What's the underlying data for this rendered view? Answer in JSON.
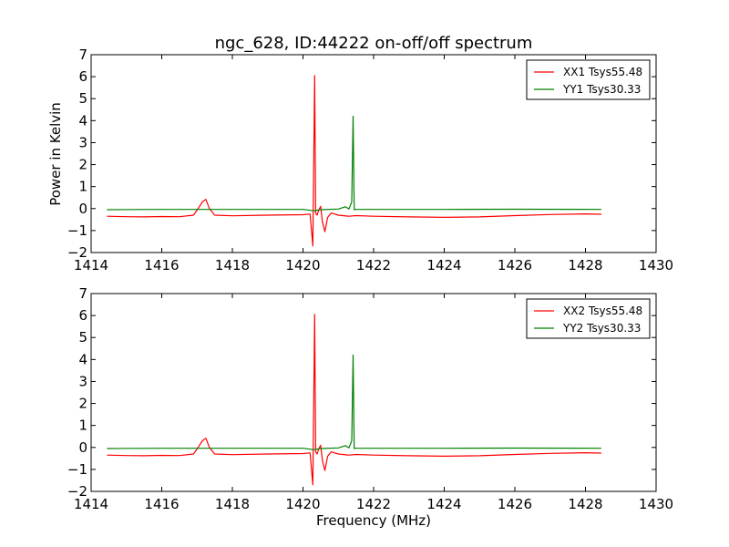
{
  "figure": {
    "title": "ngc_628, ID:44222 on-off/off spectrum",
    "ylabel": "Power in Kelvin",
    "xlabel": "Frequency (MHz)"
  },
  "colors": {
    "red": "#ff0000",
    "green": "#008000"
  },
  "chart_data": [
    {
      "type": "line",
      "title": "ngc_628, ID:44222 on-off/off spectrum",
      "xlabel": "",
      "ylabel": "Power in Kelvin",
      "xlim": [
        1414,
        1430
      ],
      "ylim": [
        -2,
        7
      ],
      "xticks": [
        "1414",
        "1416",
        "1418",
        "1420",
        "1422",
        "1424",
        "1426",
        "1428",
        "1430"
      ],
      "yticks": [
        "−2",
        "−1",
        "0",
        "1",
        "2",
        "3",
        "4",
        "5",
        "6",
        "7"
      ],
      "legend_position": "top-right",
      "grid": false,
      "series": [
        {
          "name": "XX1 Tsys55.48",
          "color": "#ff0000",
          "x": [
            1414.45,
            1415.0,
            1415.5,
            1416.0,
            1416.5,
            1416.9,
            1417.05,
            1417.15,
            1417.25,
            1417.35,
            1417.5,
            1418.0,
            1419.0,
            1420.0,
            1420.2,
            1420.28,
            1420.33,
            1420.36,
            1420.4,
            1420.45,
            1420.5,
            1420.55,
            1420.62,
            1420.7,
            1420.8,
            1421.0,
            1421.3,
            1421.5,
            1422.0,
            1423.0,
            1424.0,
            1425.0,
            1426.0,
            1427.0,
            1428.0,
            1428.45
          ],
          "y": [
            -0.35,
            -0.37,
            -0.38,
            -0.36,
            -0.37,
            -0.3,
            0.05,
            0.3,
            0.42,
            0.0,
            -0.3,
            -0.33,
            -0.3,
            -0.28,
            -0.25,
            -1.7,
            6.05,
            -0.2,
            -0.3,
            -0.05,
            0.1,
            -0.6,
            -1.05,
            -0.4,
            -0.2,
            -0.3,
            -0.35,
            -0.32,
            -0.35,
            -0.38,
            -0.4,
            -0.38,
            -0.32,
            -0.27,
            -0.24,
            -0.26
          ]
        },
        {
          "name": "YY1 Tsys30.33",
          "color": "#008000",
          "x": [
            1414.45,
            1416.0,
            1418.0,
            1420.0,
            1420.3,
            1420.5,
            1421.0,
            1421.2,
            1421.3,
            1421.38,
            1421.42,
            1421.45,
            1421.5,
            1422.0,
            1424.0,
            1426.0,
            1428.45
          ],
          "y": [
            -0.05,
            -0.04,
            -0.04,
            -0.04,
            -0.1,
            -0.05,
            -0.02,
            0.08,
            -0.02,
            0.3,
            4.2,
            -0.05,
            -0.04,
            -0.04,
            -0.04,
            -0.03,
            -0.04
          ]
        }
      ]
    },
    {
      "type": "line",
      "title": "",
      "xlabel": "Frequency (MHz)",
      "ylabel": "",
      "xlim": [
        1414,
        1430
      ],
      "ylim": [
        -2,
        7
      ],
      "xticks": [
        "1414",
        "1416",
        "1418",
        "1420",
        "1422",
        "1424",
        "1426",
        "1428",
        "1430"
      ],
      "yticks": [
        "−2",
        "−1",
        "0",
        "1",
        "2",
        "3",
        "4",
        "5",
        "6",
        "7"
      ],
      "legend_position": "top-right",
      "grid": false,
      "series": [
        {
          "name": "XX2 Tsys55.48",
          "color": "#ff0000",
          "x": [
            1414.45,
            1415.0,
            1415.5,
            1416.0,
            1416.5,
            1416.9,
            1417.05,
            1417.15,
            1417.25,
            1417.35,
            1417.5,
            1418.0,
            1419.0,
            1420.0,
            1420.2,
            1420.28,
            1420.33,
            1420.36,
            1420.4,
            1420.45,
            1420.5,
            1420.55,
            1420.62,
            1420.7,
            1420.8,
            1421.0,
            1421.3,
            1421.5,
            1422.0,
            1423.0,
            1424.0,
            1425.0,
            1426.0,
            1427.0,
            1428.0,
            1428.45
          ],
          "y": [
            -0.35,
            -0.37,
            -0.38,
            -0.36,
            -0.37,
            -0.3,
            0.05,
            0.3,
            0.42,
            0.0,
            -0.3,
            -0.33,
            -0.3,
            -0.28,
            -0.25,
            -1.7,
            6.05,
            -0.2,
            -0.3,
            -0.05,
            0.1,
            -0.6,
            -1.05,
            -0.4,
            -0.2,
            -0.3,
            -0.35,
            -0.32,
            -0.35,
            -0.38,
            -0.4,
            -0.38,
            -0.32,
            -0.27,
            -0.24,
            -0.26
          ]
        },
        {
          "name": "YY2 Tsys30.33",
          "color": "#008000",
          "x": [
            1414.45,
            1416.0,
            1418.0,
            1420.0,
            1420.3,
            1420.5,
            1421.0,
            1421.2,
            1421.3,
            1421.38,
            1421.42,
            1421.45,
            1421.5,
            1422.0,
            1424.0,
            1426.0,
            1428.45
          ],
          "y": [
            -0.05,
            -0.04,
            -0.04,
            -0.04,
            -0.1,
            -0.05,
            -0.02,
            0.08,
            -0.02,
            0.3,
            4.2,
            -0.05,
            -0.04,
            -0.04,
            -0.04,
            -0.03,
            -0.04
          ]
        }
      ]
    }
  ]
}
